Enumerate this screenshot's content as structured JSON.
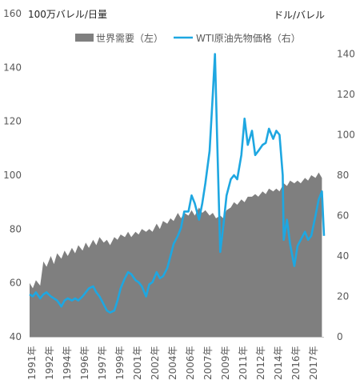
{
  "chart_data": {
    "type": "area+line",
    "left_unit": "100万バレル/日量",
    "right_unit": "ドル/バレル",
    "grid": false,
    "legend_position": "top-center",
    "left_axis": {
      "min": 40,
      "max": 160,
      "ticks": [
        "40",
        "60",
        "80",
        "100",
        "120",
        "140",
        "160"
      ]
    },
    "right_axis": {
      "min": 0,
      "max": 160,
      "ticks": [
        "0",
        "20",
        "40",
        "60",
        "80",
        "100",
        "120",
        "140"
      ]
    },
    "x_axis": {
      "min": 1991.0,
      "max": 2018.8,
      "ticks": [
        "1991年",
        "1992年",
        "1994年",
        "1996年",
        "1997年",
        "1999年",
        "2001年",
        "2002年",
        "2004年",
        "2006年",
        "2007年",
        "2009年",
        "2011年",
        "2012年",
        "2014年",
        "2016年",
        "2017年"
      ]
    },
    "series": [
      {
        "name": "世界需要（左）",
        "axis": "left",
        "kind": "area",
        "color": "#7f7f7f",
        "x": [
          1991.0,
          1991.3,
          1991.6,
          1992.0,
          1992.3,
          1992.6,
          1993.0,
          1993.3,
          1993.6,
          1994.0,
          1994.3,
          1994.6,
          1995.0,
          1995.3,
          1995.6,
          1996.0,
          1996.3,
          1996.6,
          1997.0,
          1997.3,
          1997.6,
          1998.0,
          1998.3,
          1998.6,
          1999.0,
          1999.3,
          1999.6,
          2000.0,
          2000.3,
          2000.6,
          2001.0,
          2001.3,
          2001.6,
          2002.0,
          2002.3,
          2002.6,
          2003.0,
          2003.3,
          2003.6,
          2004.0,
          2004.3,
          2004.6,
          2005.0,
          2005.3,
          2005.6,
          2006.0,
          2006.3,
          2006.6,
          2007.0,
          2007.3,
          2007.6,
          2008.0,
          2008.3,
          2008.6,
          2009.0,
          2009.3,
          2009.6,
          2010.0,
          2010.3,
          2010.6,
          2011.0,
          2011.3,
          2011.6,
          2012.0,
          2012.3,
          2012.6,
          2013.0,
          2013.3,
          2013.6,
          2014.0,
          2014.3,
          2014.6,
          2015.0,
          2015.3,
          2015.6,
          2016.0,
          2016.3,
          2016.6,
          2017.0,
          2017.3,
          2017.6,
          2018.0,
          2018.3,
          2018.6
        ],
        "values": [
          60,
          58,
          61,
          59,
          68,
          66,
          70,
          67,
          71,
          69,
          72,
          70,
          73,
          71,
          74,
          72,
          75,
          73,
          76,
          74,
          77,
          75,
          76,
          74,
          77,
          76,
          78,
          77,
          79,
          77,
          79,
          78,
          80,
          79,
          80,
          79,
          82,
          80,
          83,
          82,
          84,
          83,
          86,
          84,
          86,
          85,
          87,
          85,
          88,
          86,
          87,
          85,
          86,
          84,
          85,
          84,
          87,
          88,
          90,
          89,
          91,
          90,
          92,
          92,
          93,
          92,
          94,
          93,
          95,
          94,
          95,
          94,
          97,
          96,
          98,
          97,
          98,
          97,
          99,
          98,
          100,
          99,
          101,
          99
        ]
      },
      {
        "name": "WTI原油先物価格（右）",
        "axis": "right",
        "kind": "line",
        "color": "#1ea7e1",
        "x": [
          1991.0,
          1991.3,
          1991.6,
          1992.0,
          1992.3,
          1992.6,
          1993.0,
          1993.3,
          1993.6,
          1994.0,
          1994.3,
          1994.6,
          1995.0,
          1995.3,
          1995.6,
          1996.0,
          1996.3,
          1996.6,
          1997.0,
          1997.3,
          1997.6,
          1998.0,
          1998.3,
          1998.6,
          1999.0,
          1999.3,
          1999.6,
          2000.0,
          2000.3,
          2000.6,
          2001.0,
          2001.3,
          2001.6,
          2002.0,
          2002.3,
          2002.6,
          2003.0,
          2003.3,
          2003.6,
          2004.0,
          2004.3,
          2004.6,
          2005.0,
          2005.3,
          2005.6,
          2006.0,
          2006.3,
          2006.6,
          2007.0,
          2007.3,
          2007.6,
          2008.0,
          2008.3,
          2008.5,
          2008.7,
          2009.0,
          2009.3,
          2009.6,
          2010.0,
          2010.3,
          2010.6,
          2011.0,
          2011.3,
          2011.6,
          2012.0,
          2012.3,
          2012.6,
          2013.0,
          2013.3,
          2013.6,
          2014.0,
          2014.3,
          2014.6,
          2014.9,
          2015.0,
          2015.3,
          2015.6,
          2016.0,
          2016.3,
          2016.6,
          2017.0,
          2017.3,
          2017.6,
          2018.0,
          2018.3,
          2018.6,
          2018.8
        ],
        "values": [
          21,
          20,
          22,
          19,
          21,
          22,
          20,
          19,
          18,
          15,
          18,
          19,
          18,
          19,
          18,
          20,
          22,
          24,
          25,
          22,
          20,
          16,
          13,
          12,
          13,
          18,
          24,
          29,
          32,
          31,
          28,
          27,
          25,
          20,
          26,
          27,
          32,
          29,
          30,
          34,
          40,
          46,
          50,
          54,
          62,
          62,
          70,
          66,
          58,
          66,
          76,
          92,
          120,
          140,
          100,
          42,
          55,
          70,
          78,
          80,
          78,
          90,
          108,
          95,
          102,
          90,
          92,
          95,
          96,
          103,
          98,
          102,
          100,
          80,
          48,
          58,
          46,
          35,
          45,
          48,
          52,
          48,
          50,
          60,
          68,
          72,
          50
        ]
      }
    ]
  }
}
